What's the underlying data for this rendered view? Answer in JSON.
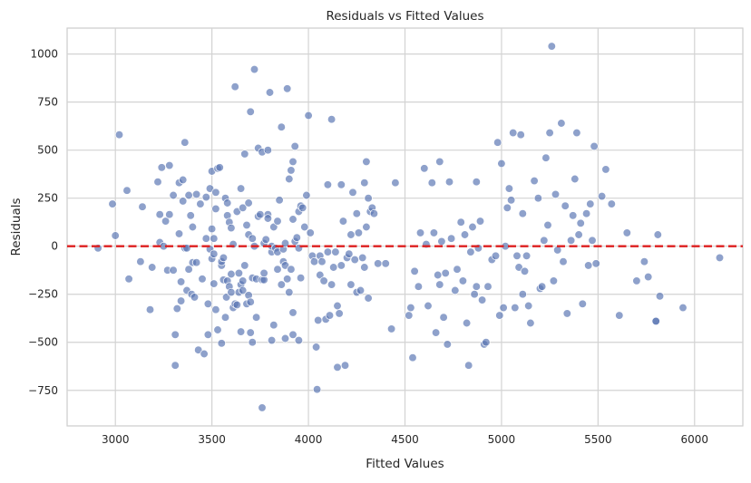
{
  "chart_data": {
    "type": "scatter",
    "title": "Residuals vs Fitted Values",
    "xlabel": "Fitted Values",
    "ylabel": "Residuals",
    "xlim": [
      2750,
      6250
    ],
    "ylim": [
      -935,
      1135
    ],
    "x_ticks": [
      3000,
      3500,
      4000,
      4500,
      5000,
      5500,
      6000
    ],
    "y_ticks": [
      -750,
      -500,
      -250,
      0,
      250,
      500,
      750,
      1000
    ],
    "grid": true,
    "reference_line": {
      "y": 0,
      "color": "#dd1f1f",
      "style": "dashed"
    },
    "point_color": "#5875b3",
    "points": [
      [
        2910,
        -10
      ],
      [
        2985,
        220
      ],
      [
        3000,
        55
      ],
      [
        3020,
        580
      ],
      [
        3060,
        290
      ],
      [
        3070,
        -170
      ],
      [
        3130,
        -80
      ],
      [
        3140,
        205
      ],
      [
        3180,
        -330
      ],
      [
        3190,
        -110
      ],
      [
        3220,
        335
      ],
      [
        3230,
        20
      ],
      [
        3230,
        165
      ],
      [
        3240,
        410
      ],
      [
        3250,
        0
      ],
      [
        3260,
        130
      ],
      [
        3270,
        -125
      ],
      [
        3280,
        420
      ],
      [
        3280,
        165
      ],
      [
        3300,
        -125
      ],
      [
        3300,
        265
      ],
      [
        3310,
        -460
      ],
      [
        3310,
        -620
      ],
      [
        3320,
        -325
      ],
      [
        3330,
        330
      ],
      [
        3330,
        65
      ],
      [
        3340,
        -185
      ],
      [
        3340,
        -285
      ],
      [
        3350,
        235
      ],
      [
        3350,
        345
      ],
      [
        3360,
        540
      ],
      [
        3360,
        -10
      ],
      [
        3370,
        -10
      ],
      [
        3370,
        -230
      ],
      [
        3380,
        -120
      ],
      [
        3380,
        265
      ],
      [
        3390,
        160
      ],
      [
        3395,
        -250
      ],
      [
        3400,
        100
      ],
      [
        3400,
        -85
      ],
      [
        3410,
        -265
      ],
      [
        3420,
        270
      ],
      [
        3420,
        -85
      ],
      [
        3430,
        -540
      ],
      [
        3440,
        220
      ],
      [
        3450,
        -170
      ],
      [
        3460,
        -560
      ],
      [
        3470,
        255
      ],
      [
        3470,
        40
      ],
      [
        3480,
        -300
      ],
      [
        3480,
        -460
      ],
      [
        3490,
        -15
      ],
      [
        3490,
        300
      ],
      [
        3500,
        90
      ],
      [
        3500,
        -65
      ],
      [
        3500,
        390
      ],
      [
        3510,
        -40
      ],
      [
        3510,
        40
      ],
      [
        3510,
        -195
      ],
      [
        3520,
        -330
      ],
      [
        3520,
        280
      ],
      [
        3520,
        195
      ],
      [
        3530,
        -435
      ],
      [
        3530,
        405
      ],
      [
        3540,
        410
      ],
      [
        3550,
        -505
      ],
      [
        3550,
        -100
      ],
      [
        3550,
        -80
      ],
      [
        3560,
        -60
      ],
      [
        3560,
        -175
      ],
      [
        3570,
        250
      ],
      [
        3570,
        -370
      ],
      [
        3575,
        -265
      ],
      [
        3580,
        -180
      ],
      [
        3580,
        225
      ],
      [
        3580,
        160
      ],
      [
        3590,
        125
      ],
      [
        3590,
        -210
      ],
      [
        3600,
        -240
      ],
      [
        3600,
        -145
      ],
      [
        3600,
        95
      ],
      [
        3610,
        10
      ],
      [
        3610,
        -320
      ],
      [
        3620,
        830
      ],
      [
        3620,
        -300
      ],
      [
        3630,
        -305
      ],
      [
        3630,
        180
      ],
      [
        3640,
        -140
      ],
      [
        3640,
        -240
      ],
      [
        3650,
        300
      ],
      [
        3650,
        -200
      ],
      [
        3650,
        -445
      ],
      [
        3660,
        200
      ],
      [
        3660,
        -180
      ],
      [
        3660,
        -230
      ],
      [
        3670,
        480
      ],
      [
        3670,
        -100
      ],
      [
        3680,
        -300
      ],
      [
        3680,
        110
      ],
      [
        3690,
        225
      ],
      [
        3690,
        60
      ],
      [
        3690,
        -255
      ],
      [
        3700,
        700
      ],
      [
        3700,
        -290
      ],
      [
        3700,
        -450
      ],
      [
        3710,
        40
      ],
      [
        3710,
        -500
      ],
      [
        3710,
        -165
      ],
      [
        3720,
        920
      ],
      [
        3720,
        0
      ],
      [
        3730,
        -370
      ],
      [
        3730,
        -170
      ],
      [
        3740,
        510
      ],
      [
        3740,
        155
      ],
      [
        3750,
        165
      ],
      [
        3760,
        -840
      ],
      [
        3760,
        490
      ],
      [
        3760,
        -175
      ],
      [
        3770,
        -175
      ],
      [
        3770,
        15
      ],
      [
        3770,
        -140
      ],
      [
        3780,
        35
      ],
      [
        3790,
        500
      ],
      [
        3790,
        165
      ],
      [
        3790,
        145
      ],
      [
        3800,
        800
      ],
      [
        3810,
        -30
      ],
      [
        3810,
        -490
      ],
      [
        3810,
        0
      ],
      [
        3820,
        -410
      ],
      [
        3820,
        100
      ],
      [
        3830,
        -10
      ],
      [
        3840,
        -30
      ],
      [
        3840,
        130
      ],
      [
        3840,
        -120
      ],
      [
        3850,
        240
      ],
      [
        3860,
        620
      ],
      [
        3860,
        -200
      ],
      [
        3870,
        -80
      ],
      [
        3870,
        -15
      ],
      [
        3880,
        -100
      ],
      [
        3880,
        -480
      ],
      [
        3880,
        15
      ],
      [
        3890,
        820
      ],
      [
        3890,
        -170
      ],
      [
        3900,
        350
      ],
      [
        3900,
        -240
      ],
      [
        3910,
        -120
      ],
      [
        3910,
        395
      ],
      [
        3920,
        440
      ],
      [
        3920,
        -460
      ],
      [
        3920,
        -345
      ],
      [
        3920,
        140
      ],
      [
        3930,
        25
      ],
      [
        3930,
        520
      ],
      [
        3940,
        45
      ],
      [
        3950,
        -10
      ],
      [
        3950,
        -490
      ],
      [
        3950,
        180
      ],
      [
        3960,
        -165
      ],
      [
        3960,
        210
      ],
      [
        3970,
        200
      ],
      [
        3980,
        100
      ],
      [
        3990,
        265
      ],
      [
        4000,
        680
      ],
      [
        4010,
        70
      ],
      [
        4020,
        -50
      ],
      [
        4030,
        -80
      ],
      [
        4040,
        -525
      ],
      [
        4045,
        -745
      ],
      [
        4050,
        -385
      ],
      [
        4060,
        -50
      ],
      [
        4060,
        -150
      ],
      [
        4070,
        -80
      ],
      [
        4080,
        -180
      ],
      [
        4090,
        -380
      ],
      [
        4100,
        320
      ],
      [
        4100,
        -30
      ],
      [
        4110,
        -360
      ],
      [
        4120,
        -200
      ],
      [
        4120,
        660
      ],
      [
        4130,
        -110
      ],
      [
        4140,
        -30
      ],
      [
        4150,
        -310
      ],
      [
        4150,
        -630
      ],
      [
        4160,
        -350
      ],
      [
        4170,
        320
      ],
      [
        4170,
        -100
      ],
      [
        4180,
        130
      ],
      [
        4190,
        -620
      ],
      [
        4200,
        -60
      ],
      [
        4210,
        -40
      ],
      [
        4220,
        60
      ],
      [
        4220,
        -200
      ],
      [
        4230,
        280
      ],
      [
        4240,
        -70
      ],
      [
        4250,
        -240
      ],
      [
        4250,
        170
      ],
      [
        4260,
        70
      ],
      [
        4270,
        -230
      ],
      [
        4280,
        -60
      ],
      [
        4290,
        -110
      ],
      [
        4290,
        330
      ],
      [
        4300,
        440
      ],
      [
        4300,
        100
      ],
      [
        4310,
        -270
      ],
      [
        4310,
        250
      ],
      [
        4320,
        180
      ],
      [
        4330,
        200
      ],
      [
        4340,
        170
      ],
      [
        4360,
        -90
      ],
      [
        4400,
        -90
      ],
      [
        4430,
        -430
      ],
      [
        4450,
        330
      ],
      [
        4520,
        -360
      ],
      [
        4530,
        -320
      ],
      [
        4540,
        -580
      ],
      [
        4550,
        -130
      ],
      [
        4570,
        -210
      ],
      [
        4580,
        70
      ],
      [
        4600,
        405
      ],
      [
        4610,
        10
      ],
      [
        4620,
        -310
      ],
      [
        4640,
        330
      ],
      [
        4650,
        70
      ],
      [
        4660,
        -450
      ],
      [
        4670,
        -150
      ],
      [
        4680,
        440
      ],
      [
        4680,
        -200
      ],
      [
        4690,
        25
      ],
      [
        4700,
        -370
      ],
      [
        4710,
        -140
      ],
      [
        4720,
        -510
      ],
      [
        4730,
        335
      ],
      [
        4740,
        40
      ],
      [
        4760,
        -230
      ],
      [
        4770,
        -120
      ],
      [
        4790,
        125
      ],
      [
        4800,
        -180
      ],
      [
        4810,
        60
      ],
      [
        4820,
        -400
      ],
      [
        4830,
        -620
      ],
      [
        4840,
        -30
      ],
      [
        4850,
        100
      ],
      [
        4860,
        -250
      ],
      [
        4870,
        -210
      ],
      [
        4870,
        335
      ],
      [
        4880,
        -10
      ],
      [
        4890,
        130
      ],
      [
        4900,
        -280
      ],
      [
        4910,
        -510
      ],
      [
        4920,
        -500
      ],
      [
        4930,
        -210
      ],
      [
        4950,
        -70
      ],
      [
        4970,
        -50
      ],
      [
        4980,
        540
      ],
      [
        4990,
        -360
      ],
      [
        5000,
        430
      ],
      [
        5010,
        -320
      ],
      [
        5020,
        0
      ],
      [
        5030,
        200
      ],
      [
        5040,
        300
      ],
      [
        5050,
        240
      ],
      [
        5060,
        590
      ],
      [
        5070,
        -320
      ],
      [
        5080,
        -50
      ],
      [
        5090,
        -110
      ],
      [
        5100,
        580
      ],
      [
        5110,
        -250
      ],
      [
        5110,
        170
      ],
      [
        5120,
        -130
      ],
      [
        5130,
        -50
      ],
      [
        5140,
        -310
      ],
      [
        5150,
        -400
      ],
      [
        5170,
        340
      ],
      [
        5190,
        250
      ],
      [
        5200,
        -220
      ],
      [
        5210,
        -210
      ],
      [
        5220,
        30
      ],
      [
        5230,
        460
      ],
      [
        5240,
        110
      ],
      [
        5250,
        590
      ],
      [
        5260,
        1040
      ],
      [
        5270,
        -180
      ],
      [
        5280,
        270
      ],
      [
        5290,
        -20
      ],
      [
        5310,
        640
      ],
      [
        5320,
        -80
      ],
      [
        5330,
        210
      ],
      [
        5340,
        -350
      ],
      [
        5360,
        30
      ],
      [
        5370,
        160
      ],
      [
        5380,
        350
      ],
      [
        5390,
        590
      ],
      [
        5400,
        60
      ],
      [
        5410,
        120
      ],
      [
        5420,
        -300
      ],
      [
        5440,
        170
      ],
      [
        5450,
        -100
      ],
      [
        5460,
        220
      ],
      [
        5470,
        30
      ],
      [
        5480,
        520
      ],
      [
        5490,
        -90
      ],
      [
        5520,
        260
      ],
      [
        5540,
        400
      ],
      [
        5570,
        220
      ],
      [
        5610,
        -360
      ],
      [
        5650,
        70
      ],
      [
        5700,
        -180
      ],
      [
        5740,
        -80
      ],
      [
        5760,
        -160
      ],
      [
        5800,
        -390
      ],
      [
        5800,
        -390
      ],
      [
        5810,
        60
      ],
      [
        5820,
        -260
      ],
      [
        5940,
        -320
      ],
      [
        6130,
        -60
      ]
    ]
  }
}
